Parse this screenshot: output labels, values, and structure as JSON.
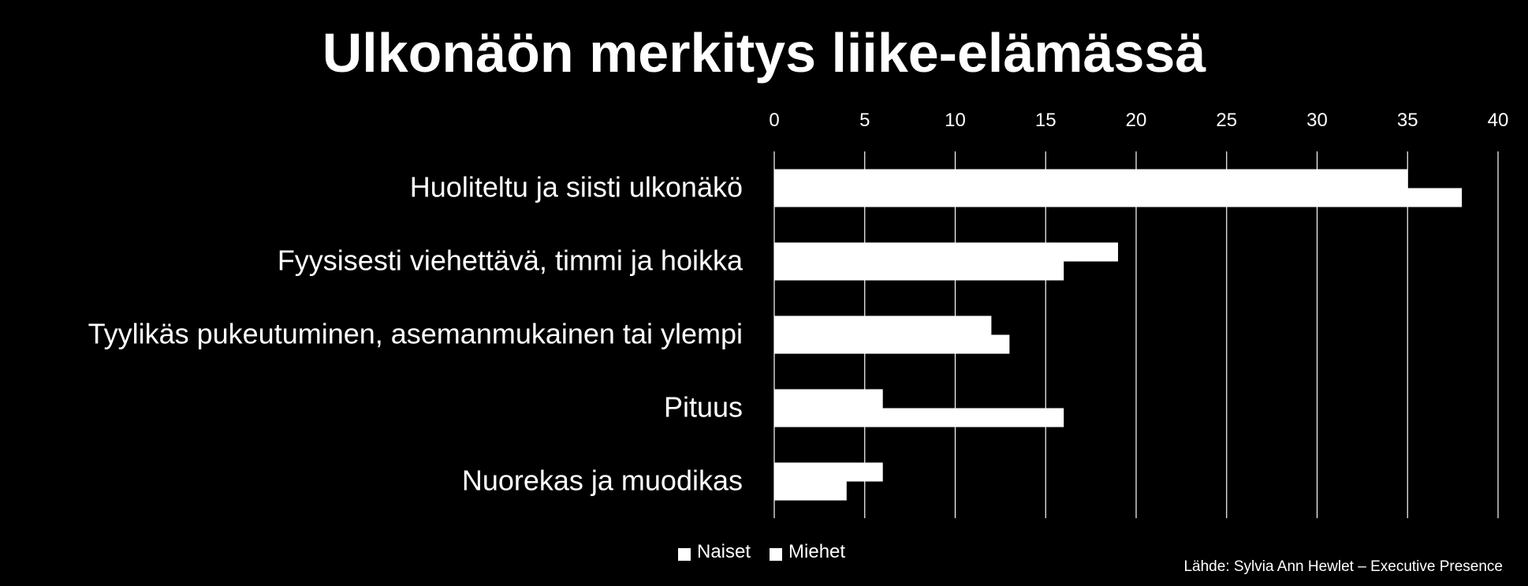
{
  "colors": {
    "background": "#000000",
    "foreground": "#ffffff",
    "grid": "#ffffff"
  },
  "source_note": "Lähde: Sylvia Ann Hewlet – Executive Presence",
  "chart_data": {
    "type": "bar",
    "orientation": "horizontal",
    "title": "Ulkonäön merkitys liike-elämässä",
    "categories": [
      "Huoliteltu ja siisti ulkonäkö",
      "Fyysisesti viehettävä, timmi ja hoikka",
      "Tyylikäs pukeutuminen, asemanmukainen tai ylempi",
      "Pituus",
      "Nuorekas ja muodikas"
    ],
    "series": [
      {
        "name": "Naiset",
        "values": [
          35,
          19,
          12,
          6,
          6
        ]
      },
      {
        "name": "Miehet",
        "values": [
          38,
          16,
          13,
          16,
          4
        ]
      }
    ],
    "xlim": [
      0,
      40
    ],
    "x_ticks": [
      0,
      5,
      10,
      15,
      20,
      25,
      30,
      35,
      40
    ],
    "x_axis_position": "top",
    "grid": true,
    "legend_position": "bottom"
  }
}
